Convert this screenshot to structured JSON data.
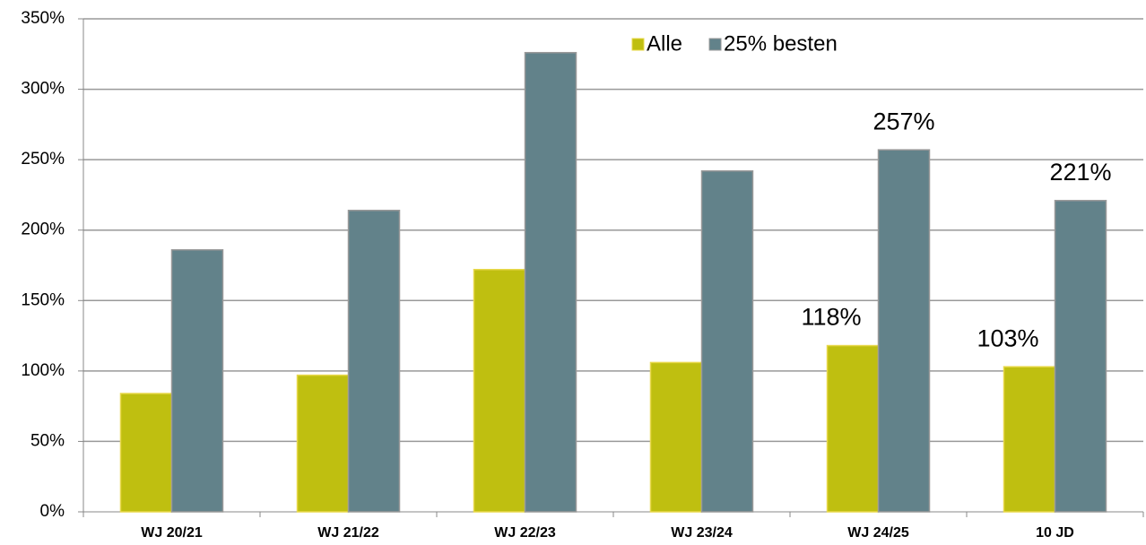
{
  "chart_data": {
    "type": "bar",
    "categories": [
      "WJ 20/21",
      "WJ 21/22",
      "WJ 22/23",
      "WJ 23/24",
      "WJ 24/25",
      "10 JD"
    ],
    "series": [
      {
        "name": "Alle",
        "color": "#bfbf10",
        "values": [
          84,
          97,
          172,
          106,
          118,
          103
        ],
        "value_labels": [
          null,
          null,
          null,
          null,
          "118%",
          "103%"
        ]
      },
      {
        "name": "25% besten",
        "color": "#62828a",
        "values": [
          186,
          214,
          326,
          242,
          257,
          221
        ],
        "value_labels": [
          null,
          null,
          null,
          null,
          "257%",
          "221%"
        ]
      }
    ],
    "ylim": [
      0,
      350
    ],
    "yticks": [
      {
        "value": 0,
        "label": "0%"
      },
      {
        "value": 50,
        "label": "50%"
      },
      {
        "value": 100,
        "label": "100%"
      },
      {
        "value": 150,
        "label": "150%"
      },
      {
        "value": 200,
        "label": "200%"
      },
      {
        "value": 250,
        "label": "250%"
      },
      {
        "value": 300,
        "label": "300%"
      },
      {
        "value": 350,
        "label": "350%"
      }
    ],
    "grid": true,
    "legend": "top"
  }
}
